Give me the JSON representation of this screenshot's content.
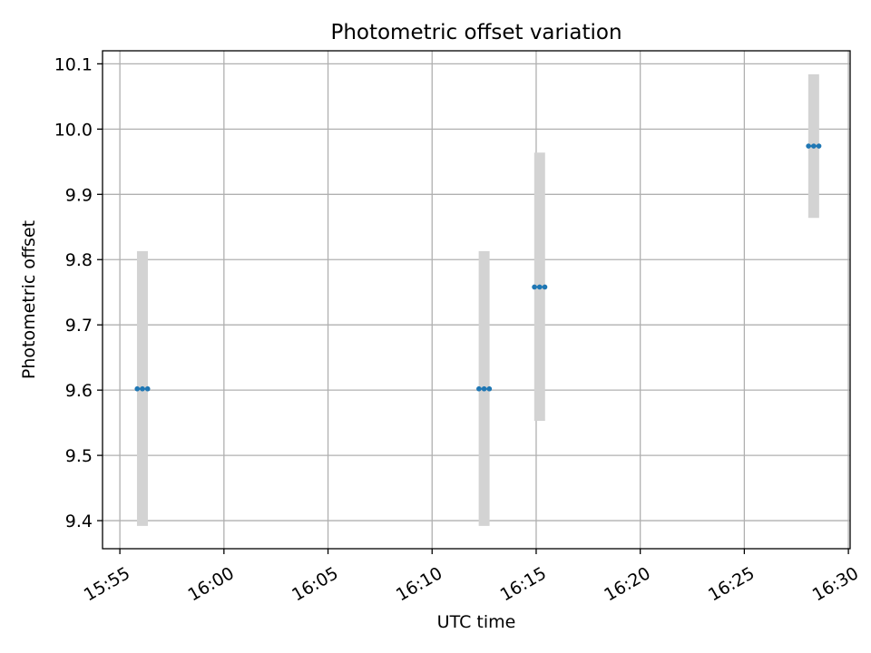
{
  "chart_data": {
    "type": "scatter",
    "title": "Photometric offset variation",
    "xlabel": "UTC time",
    "ylabel": "Photometric offset",
    "grid": true,
    "legend": "none",
    "xlim": [
      "15:54:10",
      "16:30:05"
    ],
    "ylim": [
      9.357,
      10.12
    ],
    "xticks": [
      "15:55",
      "16:00",
      "16:05",
      "16:10",
      "16:15",
      "16:20",
      "16:25",
      "16:30"
    ],
    "yticks": [
      "9.4",
      "9.5",
      "9.6",
      "9.7",
      "9.8",
      "9.9",
      "10.0",
      "10.1"
    ],
    "series": [
      {
        "points": [
          {
            "x": [
              "15:55:50",
              "15:56:05",
              "15:56:20"
            ],
            "y": 9.602,
            "err_low": 9.392,
            "err_high": 9.813
          },
          {
            "x": [
              "16:12:15",
              "16:12:30",
              "16:12:45"
            ],
            "y": 9.602,
            "err_low": 9.392,
            "err_high": 9.813
          },
          {
            "x": [
              "16:14:55",
              "16:15:10",
              "16:15:25"
            ],
            "y": 9.758,
            "err_low": 9.553,
            "err_high": 9.964
          },
          {
            "x": [
              "16:28:05",
              "16:28:20",
              "16:28:35"
            ],
            "y": 9.974,
            "err_low": 9.864,
            "err_high": 10.084
          }
        ]
      }
    ],
    "colors": {
      "marker": "#1f77b4",
      "errorbar": "#d3d3d3",
      "grid": "#b0b0b0",
      "axes": "#000000"
    }
  }
}
